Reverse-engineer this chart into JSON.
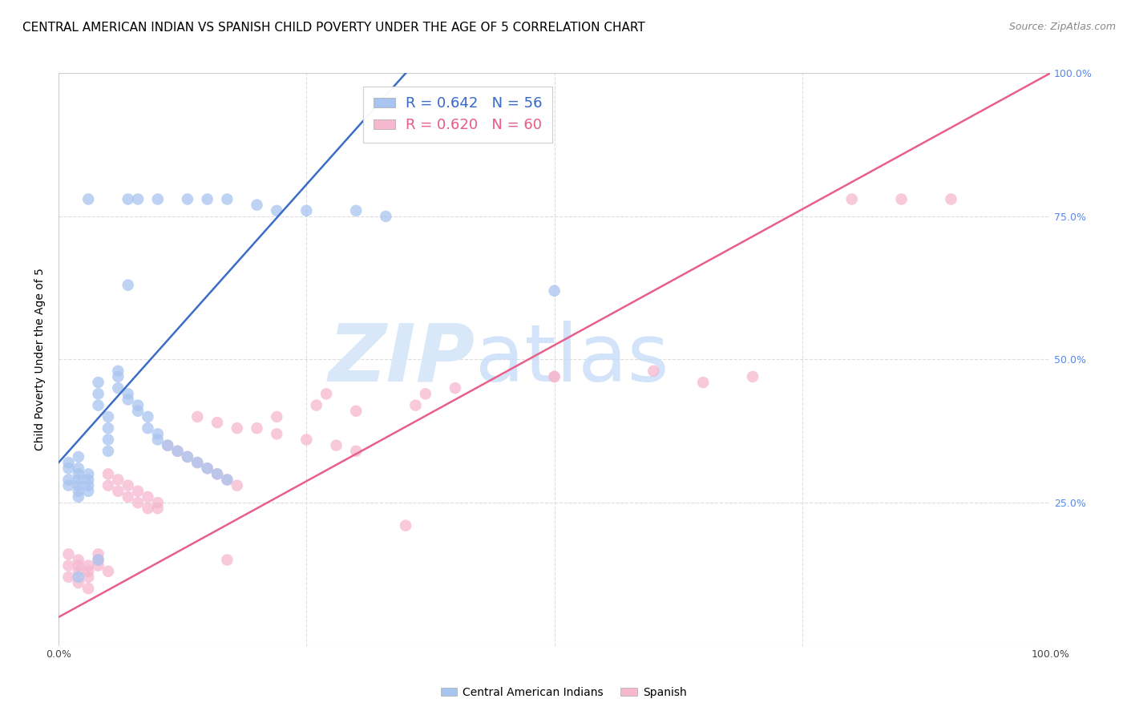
{
  "title": "CENTRAL AMERICAN INDIAN VS SPANISH CHILD POVERTY UNDER THE AGE OF 5 CORRELATION CHART",
  "source": "Source: ZipAtlas.com",
  "ylabel": "Child Poverty Under the Age of 5",
  "xlim": [
    0,
    1
  ],
  "ylim": [
    0,
    1
  ],
  "xticks": [
    0,
    0.25,
    0.5,
    0.75,
    1.0
  ],
  "yticks": [
    0.25,
    0.5,
    0.75,
    1.0
  ],
  "xticklabels": [
    "0.0%",
    "",
    "",
    "",
    "100.0%"
  ],
  "yticklabels": [
    "25.0%",
    "50.0%",
    "75.0%",
    "100.0%"
  ],
  "blue_color": "#A8C4F0",
  "pink_color": "#F5B8CE",
  "blue_line_color": "#3B6DC7",
  "pink_line_color": "#E8608A",
  "legend_blue_label": "R = 0.642   N = 56",
  "legend_pink_label": "R = 0.620   N = 60",
  "legend_bottom_blue": "Central American Indians",
  "legend_bottom_pink": "Spanish",
  "watermark_zip": "ZIP",
  "watermark_atlas": "atlas",
  "blue_scatter_x": [
    0.01,
    0.01,
    0.01,
    0.01,
    0.02,
    0.02,
    0.02,
    0.02,
    0.02,
    0.02,
    0.02,
    0.03,
    0.03,
    0.03,
    0.03,
    0.04,
    0.04,
    0.04,
    0.05,
    0.05,
    0.05,
    0.05,
    0.06,
    0.06,
    0.06,
    0.07,
    0.07,
    0.08,
    0.08,
    0.09,
    0.09,
    0.1,
    0.1,
    0.11,
    0.12,
    0.13,
    0.14,
    0.15,
    0.16,
    0.17,
    0.03,
    0.07,
    0.08,
    0.1,
    0.13,
    0.15,
    0.17,
    0.2,
    0.22,
    0.25,
    0.3,
    0.33,
    0.02,
    0.04,
    0.5,
    0.07
  ],
  "blue_scatter_y": [
    0.29,
    0.31,
    0.32,
    0.28,
    0.3,
    0.29,
    0.31,
    0.28,
    0.27,
    0.33,
    0.26,
    0.3,
    0.29,
    0.28,
    0.27,
    0.42,
    0.44,
    0.46,
    0.4,
    0.38,
    0.36,
    0.34,
    0.48,
    0.47,
    0.45,
    0.44,
    0.43,
    0.42,
    0.41,
    0.4,
    0.38,
    0.37,
    0.36,
    0.35,
    0.34,
    0.33,
    0.32,
    0.31,
    0.3,
    0.29,
    0.78,
    0.78,
    0.78,
    0.78,
    0.78,
    0.78,
    0.78,
    0.77,
    0.76,
    0.76,
    0.76,
    0.75,
    0.12,
    0.15,
    0.62,
    0.63
  ],
  "pink_scatter_x": [
    0.01,
    0.01,
    0.01,
    0.02,
    0.02,
    0.02,
    0.02,
    0.03,
    0.03,
    0.03,
    0.03,
    0.04,
    0.04,
    0.04,
    0.05,
    0.05,
    0.05,
    0.06,
    0.06,
    0.07,
    0.07,
    0.08,
    0.08,
    0.09,
    0.09,
    0.1,
    0.1,
    0.11,
    0.12,
    0.13,
    0.14,
    0.15,
    0.16,
    0.17,
    0.18,
    0.2,
    0.22,
    0.25,
    0.28,
    0.3,
    0.14,
    0.16,
    0.18,
    0.22,
    0.26,
    0.27,
    0.3,
    0.36,
    0.37,
    0.4,
    0.5,
    0.6,
    0.65,
    0.7,
    0.8,
    0.85,
    0.9,
    0.5,
    0.35,
    0.17
  ],
  "pink_scatter_y": [
    0.14,
    0.16,
    0.12,
    0.13,
    0.14,
    0.15,
    0.11,
    0.12,
    0.13,
    0.14,
    0.1,
    0.15,
    0.16,
    0.14,
    0.13,
    0.28,
    0.3,
    0.27,
    0.29,
    0.26,
    0.28,
    0.27,
    0.25,
    0.24,
    0.26,
    0.25,
    0.24,
    0.35,
    0.34,
    0.33,
    0.32,
    0.31,
    0.3,
    0.29,
    0.28,
    0.38,
    0.37,
    0.36,
    0.35,
    0.34,
    0.4,
    0.39,
    0.38,
    0.4,
    0.42,
    0.44,
    0.41,
    0.42,
    0.44,
    0.45,
    0.47,
    0.48,
    0.46,
    0.47,
    0.78,
    0.78,
    0.78,
    0.47,
    0.21,
    0.15
  ],
  "blue_line_x": [
    0.0,
    0.35
  ],
  "blue_line_y": [
    0.32,
    1.0
  ],
  "pink_line_x": [
    0.0,
    1.0
  ],
  "pink_line_y": [
    0.05,
    1.0
  ],
  "grid_color": "#DDDDDD",
  "background_color": "#FFFFFF",
  "title_fontsize": 11,
  "axis_label_fontsize": 10,
  "tick_label_color_right": "#5588EE"
}
